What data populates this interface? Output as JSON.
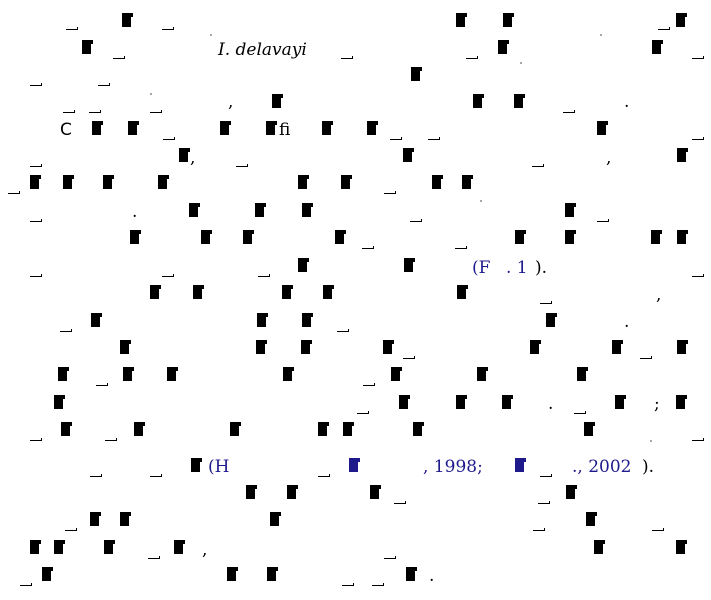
{
  "paper": {
    "species": "I. delavayi",
    "letter_c": "C",
    "ligature_fi": "fi",
    "comma": ",",
    "period": ".",
    "semicolon": ";",
    "fig_ref": {
      "open": "(F",
      "num": ". 1",
      "close": ")."
    },
    "citation": {
      "open": "(H",
      "year1": ", 1998;",
      "year2": "., 2002",
      "close": ")."
    },
    "colors": {
      "text": "#000000",
      "link": "#1f1a8c"
    }
  }
}
